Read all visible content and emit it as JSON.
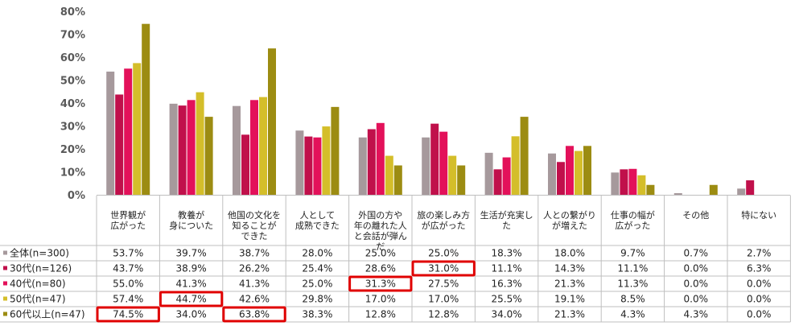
{
  "chart_data": {
    "type": "bar",
    "title": "",
    "xlabel": "",
    "ylabel": "",
    "ylim": [
      0,
      80
    ],
    "y_ticks": [
      "0%",
      "10%",
      "20%",
      "30%",
      "40%",
      "50%",
      "60%",
      "70%",
      "80%"
    ],
    "grid": false,
    "legend": "table-rows",
    "categories": [
      [
        "世界観が",
        "広がった"
      ],
      [
        "教養が",
        "身についた"
      ],
      [
        "他国の文化を",
        "知ることが",
        "できた"
      ],
      [
        "人として",
        "成熟できた"
      ],
      [
        "外国の方や",
        "年の離れた人",
        "と会話が弾ん",
        "だ"
      ],
      [
        "旅の楽しみ方",
        "が広がった"
      ],
      [
        "生活が充実し",
        "た"
      ],
      [
        "人との繋がり",
        "が増えた"
      ],
      [
        "仕事の幅が",
        "広がった"
      ],
      [
        "その他"
      ],
      [
        "特にない"
      ]
    ],
    "series": [
      {
        "name": "全体(n=300)",
        "color": "#a6999c",
        "values": [
          53.7,
          39.7,
          38.7,
          28.0,
          25.0,
          25.0,
          18.3,
          18.0,
          9.7,
          0.7,
          2.7
        ],
        "labels": [
          "53.7%",
          "39.7%",
          "38.7%",
          "28.0%",
          "25.0%",
          "25.0%",
          "18.3%",
          "18.0%",
          "9.7%",
          "0.7%",
          "2.7%"
        ]
      },
      {
        "name": "30代(n=126)",
        "color": "#c0104b",
        "values": [
          43.7,
          38.9,
          26.2,
          25.4,
          28.6,
          31.0,
          11.1,
          14.3,
          11.1,
          0.0,
          6.3
        ],
        "labels": [
          "43.7%",
          "38.9%",
          "26.2%",
          "25.4%",
          "28.6%",
          "31.0%",
          "11.1%",
          "14.3%",
          "11.1%",
          "0.0%",
          "6.3%"
        ]
      },
      {
        "name": "40代(n=80)",
        "color": "#e3115a",
        "values": [
          55.0,
          41.3,
          41.3,
          25.0,
          31.3,
          27.5,
          16.3,
          21.3,
          11.3,
          0.0,
          0.0
        ],
        "labels": [
          "55.0%",
          "41.3%",
          "41.3%",
          "25.0%",
          "31.3%",
          "27.5%",
          "16.3%",
          "21.3%",
          "11.3%",
          "0.0%",
          "0.0%"
        ]
      },
      {
        "name": "50代(n=47)",
        "color": "#d4be2a",
        "values": [
          57.4,
          44.7,
          42.6,
          29.8,
          17.0,
          17.0,
          25.5,
          19.1,
          8.5,
          0.0,
          0.0
        ],
        "labels": [
          "57.4%",
          "44.7%",
          "42.6%",
          "29.8%",
          "17.0%",
          "17.0%",
          "25.5%",
          "19.1%",
          "8.5%",
          "0.0%",
          "0.0%"
        ]
      },
      {
        "name": "60代以上(n=47)",
        "color": "#9c8c12",
        "values": [
          74.5,
          34.0,
          63.8,
          38.3,
          12.8,
          12.8,
          34.0,
          21.3,
          4.3,
          4.3,
          0.0
        ],
        "labels": [
          "74.5%",
          "34.0%",
          "63.8%",
          "38.3%",
          "12.8%",
          "12.8%",
          "34.0%",
          "21.3%",
          "4.3%",
          "4.3%",
          "0.0%"
        ]
      }
    ],
    "highlights": [
      {
        "series": 4,
        "category": 0
      },
      {
        "series": 3,
        "category": 1
      },
      {
        "series": 4,
        "category": 2
      },
      {
        "series": 2,
        "category": 4
      },
      {
        "series": 1,
        "category": 5
      }
    ],
    "highlight_color": "#e00000"
  }
}
